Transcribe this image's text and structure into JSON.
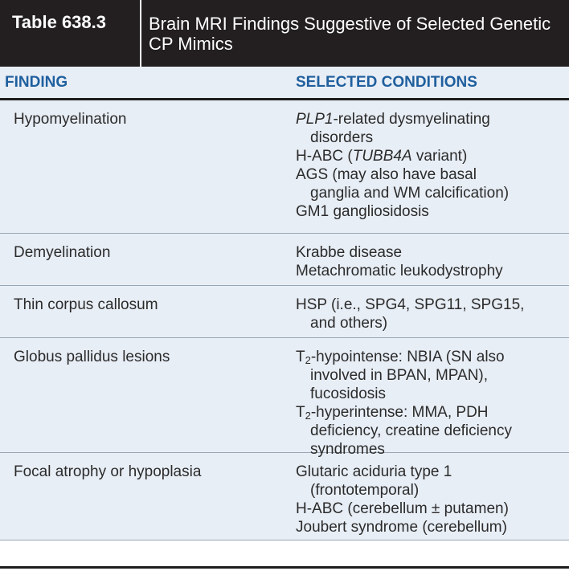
{
  "title": {
    "label": "Table 638.3",
    "text": "Brain MRI Findings Suggestive of Selected Genetic CP Mimics"
  },
  "header": {
    "finding": "FINDING",
    "conditions": "SELECTED CONDITIONS"
  },
  "rows": [
    {
      "finding": "Hypomyelination",
      "lines": [
        {
          "text": "PLP1-related dysmyelinating",
          "cont": false
        },
        {
          "text": "disorders",
          "cont": true
        },
        {
          "text": "H-ABC (TUBB4A variant)",
          "cont": false
        },
        {
          "text": "AGS (may also have basal",
          "cont": false
        },
        {
          "text": "ganglia and WM calcification)",
          "cont": true
        },
        {
          "text": "GM1 gangliosidosis",
          "cont": false
        }
      ]
    },
    {
      "finding": "Demyelination",
      "lines": [
        {
          "text": "Krabbe disease",
          "cont": false
        },
        {
          "text": "Metachromatic leukodystrophy",
          "cont": false
        }
      ]
    },
    {
      "finding": "Thin corpus callosum",
      "lines": [
        {
          "text": "HSP (i.e., SPG4, SPG11, SPG15,",
          "cont": false
        },
        {
          "text": "and others)",
          "cont": true
        }
      ]
    },
    {
      "finding": "Globus pallidus lesions",
      "lines": [
        {
          "text": "T2-hypointense: NBIA (SN also",
          "cont": false
        },
        {
          "text": "involved in BPAN, MPAN),",
          "cont": true
        },
        {
          "text": "fucosidosis",
          "cont": true
        },
        {
          "text": "T2-hyperintense: MMA, PDH",
          "cont": false
        },
        {
          "text": "deficiency, creatine deficiency",
          "cont": true
        },
        {
          "text": "syndromes",
          "cont": true
        }
      ]
    },
    {
      "finding": "Focal atrophy or hypoplasia",
      "lines": [
        {
          "text": "Glutaric aciduria type 1",
          "cont": false
        },
        {
          "text": "(frontotemporal)",
          "cont": true
        },
        {
          "text": "H-ABC (cerebellum ± putamen)",
          "cont": false
        },
        {
          "text": "Joubert syndrome (cerebellum)",
          "cont": false
        }
      ]
    }
  ]
}
